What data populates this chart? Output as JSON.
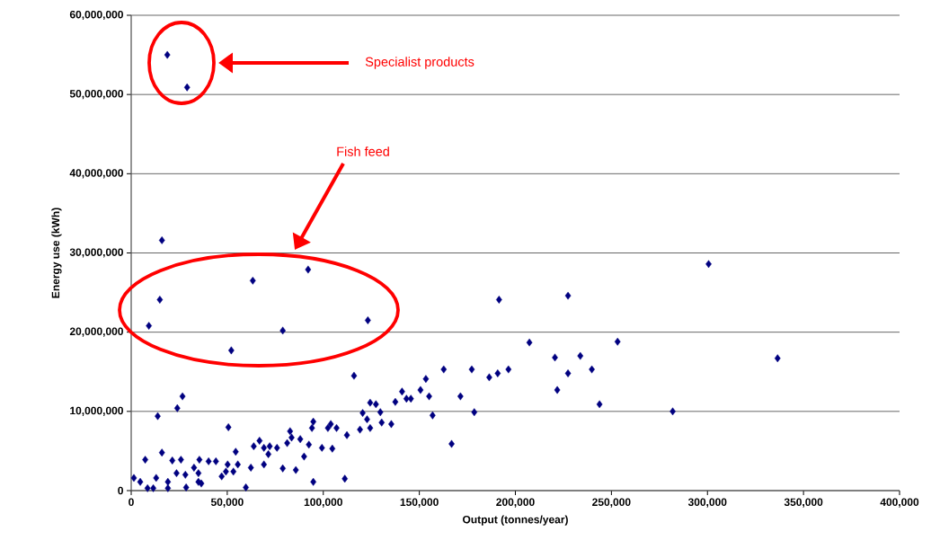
{
  "chart_data": {
    "type": "scatter",
    "xlabel": "Output (tonnes/year)",
    "ylabel": "Energy use (kWh)",
    "xlim": [
      0,
      400000
    ],
    "ylim": [
      0,
      60000000
    ],
    "xticks": [
      {
        "value": 0,
        "label": "0"
      },
      {
        "value": 50000,
        "label": "50,000"
      },
      {
        "value": 100000,
        "label": "100,000"
      },
      {
        "value": 150000,
        "label": "150,000"
      },
      {
        "value": 200000,
        "label": "200,000"
      },
      {
        "value": 250000,
        "label": "250,000"
      },
      {
        "value": 300000,
        "label": "300,000"
      },
      {
        "value": 350000,
        "label": "350,000"
      },
      {
        "value": 400000,
        "label": "400,000"
      }
    ],
    "yticks": [
      {
        "value": 0,
        "label": "0"
      },
      {
        "value": 10000000,
        "label": "10,000,000"
      },
      {
        "value": 20000000,
        "label": "20,000,000"
      },
      {
        "value": 30000000,
        "label": "30,000,000"
      },
      {
        "value": 40000000,
        "label": "40,000,000"
      },
      {
        "value": 50000000,
        "label": "50,000,000"
      },
      {
        "value": 60000000,
        "label": "60,000,000"
      }
    ],
    "grid": "y",
    "marker": "diamond",
    "annotations": [
      "Specialist products",
      "Fish feed"
    ],
    "series": [
      {
        "color": "#000080",
        "x": [
          18800,
          29100,
          16000,
          14900,
          9200,
          63300,
          92100,
          78900,
          52100,
          123200,
          300600,
          336500,
          281900,
          191500,
          227400,
          207300,
          253200,
          177300,
          186400,
          190800,
          196400,
          220600,
          233800,
          227400,
          239800,
          171400,
          221800,
          243800,
          178600,
          26700,
          24000,
          13800,
          50600,
          7300,
          16000,
          21400,
          25900,
          35500,
          40300,
          44100,
          50200,
          54400,
          32700,
          62300,
          69100,
          55500,
          53200,
          78900,
          85700,
          59700,
          1400,
          4700,
          8500,
          11500,
          13000,
          19100,
          19100,
          23600,
          28200,
          28600,
          35000,
          35000,
          36500,
          47100,
          49300,
          81200,
          82700,
          83500,
          63800,
          66800,
          69100,
          72100,
          75900,
          71400,
          116000,
          162700,
          153400,
          150600,
          155100,
          141000,
          137500,
          143300,
          145600,
          124400,
          127400,
          129700,
          156900,
          120500,
          122800,
          119100,
          124400,
          130400,
          135400,
          112300,
          103900,
          102400,
          106900,
          94800,
          94100,
          88000,
          92500,
          99300,
          104700,
          90000,
          94800,
          111200,
          166800
        ],
        "values": [
          55000000,
          50900000,
          31600000,
          24100000,
          20800000,
          26500000,
          27900000,
          20200000,
          17700000,
          21500000,
          28600000,
          16700000,
          10000000,
          24100000,
          24600000,
          18700000,
          18800000,
          15300000,
          14300000,
          14800000,
          15300000,
          16800000,
          17000000,
          14800000,
          15300000,
          11900000,
          12700000,
          10900000,
          9900000,
          11900000,
          10400000,
          9400000,
          8000000,
          3900000,
          4800000,
          3800000,
          3900000,
          3900000,
          3700000,
          3700000,
          3300000,
          4900000,
          2900000,
          2900000,
          3300000,
          3300000,
          2400000,
          2800000,
          2600000,
          400000,
          1600000,
          1100000,
          300000,
          300000,
          1600000,
          1100000,
          300000,
          2200000,
          2000000,
          400000,
          2200000,
          1100000,
          900000,
          1800000,
          2400000,
          6000000,
          7500000,
          6700000,
          5600000,
          6300000,
          5400000,
          5600000,
          5400000,
          4600000,
          14500000,
          15300000,
          14100000,
          12700000,
          11900000,
          12500000,
          11200000,
          11600000,
          11600000,
          11100000,
          10900000,
          9900000,
          9500000,
          9800000,
          9000000,
          7700000,
          7900000,
          8600000,
          8400000,
          7000000,
          8400000,
          7900000,
          7900000,
          8700000,
          7900000,
          6500000,
          5800000,
          5400000,
          5300000,
          4300000,
          1100000,
          1500000,
          5900000
        ]
      }
    ]
  }
}
